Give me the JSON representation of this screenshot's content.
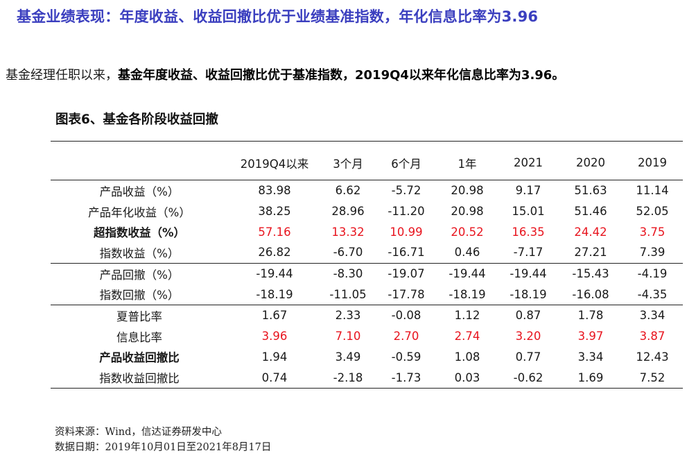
{
  "heading": "基金业绩表现：年度收益、收益回撤比优于业绩基准指数，年化信息比率为3.96",
  "summary": {
    "plain": "基金经理任职以来，",
    "strong": "基金年度收益、收益回撤比优于基准指数，2019Q4以来年化信息比率为3.96。"
  },
  "table_title": "图表6、基金各阶段收益回撤",
  "table": {
    "columns": [
      "2019Q4以来",
      "3个月",
      "6个月",
      "1年",
      "2021",
      "2020",
      "2019"
    ],
    "groups": [
      {
        "rows": [
          {
            "label": "产品收益（%）",
            "emphasis": false,
            "values": [
              "83.98",
              "6.62",
              "-5.72",
              "20.98",
              "9.17",
              "51.63",
              "11.14"
            ],
            "highlight": [
              false,
              false,
              false,
              false,
              false,
              false,
              false
            ]
          },
          {
            "label": "产品年化收益（%）",
            "emphasis": false,
            "values": [
              "38.25",
              "28.96",
              "-11.20",
              "20.98",
              "15.01",
              "51.46",
              "52.05"
            ],
            "highlight": [
              false,
              false,
              false,
              false,
              false,
              false,
              false
            ]
          },
          {
            "label": "超指数收益（%）",
            "emphasis": true,
            "values": [
              "57.16",
              "13.32",
              "10.99",
              "20.52",
              "16.35",
              "24.42",
              "3.75"
            ],
            "highlight": [
              true,
              true,
              true,
              true,
              true,
              true,
              true
            ]
          },
          {
            "label": "指数收益（%）",
            "emphasis": false,
            "values": [
              "26.82",
              "-6.70",
              "-16.71",
              "0.46",
              "-7.17",
              "27.21",
              "7.39"
            ],
            "highlight": [
              false,
              false,
              false,
              false,
              false,
              false,
              false
            ]
          }
        ]
      },
      {
        "rows": [
          {
            "label": "产品回撤（%）",
            "emphasis": false,
            "values": [
              "-19.44",
              "-8.30",
              "-19.07",
              "-19.44",
              "-19.44",
              "-15.43",
              "-4.19"
            ],
            "highlight": [
              false,
              false,
              false,
              false,
              false,
              false,
              false
            ]
          },
          {
            "label": "指数回撤（%）",
            "emphasis": false,
            "values": [
              "-18.19",
              "-11.05",
              "-17.78",
              "-18.19",
              "-18.19",
              "-16.08",
              "-4.35"
            ],
            "highlight": [
              false,
              false,
              false,
              false,
              false,
              false,
              false
            ]
          }
        ]
      },
      {
        "rows": [
          {
            "label": "夏普比率",
            "emphasis": false,
            "values": [
              "1.67",
              "2.33",
              "-0.08",
              "1.12",
              "0.87",
              "1.78",
              "3.34"
            ],
            "highlight": [
              false,
              false,
              false,
              false,
              false,
              false,
              false
            ]
          },
          {
            "label": "信息比率",
            "emphasis": false,
            "values": [
              "3.96",
              "7.10",
              "2.70",
              "2.74",
              "3.20",
              "3.97",
              "3.87"
            ],
            "highlight": [
              true,
              true,
              true,
              true,
              true,
              true,
              true
            ]
          },
          {
            "label": "产品收益回撤比",
            "emphasis": true,
            "values": [
              "1.94",
              "3.49",
              "-0.59",
              "1.08",
              "0.77",
              "3.34",
              "12.43"
            ],
            "highlight": [
              false,
              false,
              false,
              false,
              false,
              false,
              false
            ]
          },
          {
            "label": "指数收益回撤比",
            "emphasis": false,
            "values": [
              "0.74",
              "-2.18",
              "-1.73",
              "0.03",
              "-0.62",
              "1.69",
              "7.52"
            ],
            "highlight": [
              false,
              false,
              false,
              false,
              false,
              false,
              false
            ]
          }
        ]
      }
    ]
  },
  "source": {
    "line1": "资料来源：Wind，信达证券研发中心",
    "line2": "数据日期：2019年10月01日至2021年8月17日"
  },
  "colors": {
    "heading": "#3b3fbf",
    "highlight": "#e8141e",
    "rule": "#222222"
  }
}
